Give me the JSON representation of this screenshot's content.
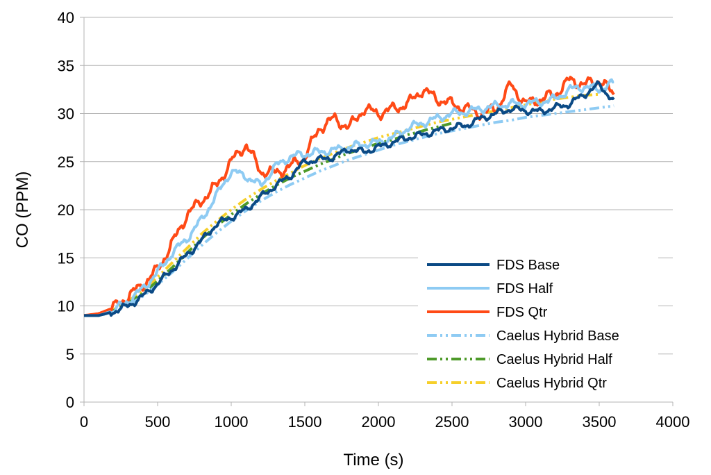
{
  "chart_data": {
    "type": "line",
    "title": "",
    "xlabel": "Time (s)",
    "ylabel": "CO (PPM)",
    "xlim": [
      0,
      4000
    ],
    "ylim": [
      0,
      40
    ],
    "xticks": [
      "0",
      "500",
      "1000",
      "1500",
      "2000",
      "2500",
      "3000",
      "3500",
      "4000"
    ],
    "yticks": [
      "0",
      "5",
      "10",
      "15",
      "20",
      "25",
      "30",
      "35",
      "40"
    ],
    "grid": "horizontal",
    "legend_position": "bottom-right",
    "series": [
      {
        "name": "FDS Base",
        "color": "#0b4a85",
        "style": "solid",
        "x": [
          0,
          100,
          200,
          300,
          400,
          500,
          600,
          700,
          800,
          900,
          1000,
          1100,
          1200,
          1300,
          1400,
          1500,
          1600,
          1700,
          1800,
          1900,
          2000,
          2100,
          2200,
          2300,
          2400,
          2500,
          2600,
          2700,
          2800,
          2900,
          3000,
          3100,
          3200,
          3300,
          3400,
          3500,
          3600
        ],
        "y": [
          9,
          9,
          9.4,
          10,
          11,
          12.3,
          13.8,
          15.3,
          16.8,
          18.5,
          19.2,
          20,
          21.3,
          22.5,
          23.5,
          25,
          25.2,
          25.5,
          26.3,
          26,
          26.5,
          27,
          27.5,
          27.8,
          28.2,
          28.5,
          28.8,
          29.5,
          30,
          30.5,
          30.3,
          30.2,
          30.6,
          31,
          32,
          33,
          31.3
        ]
      },
      {
        "name": "FDS Half",
        "color": "#8ecbf3",
        "style": "solid",
        "x": [
          0,
          100,
          200,
          300,
          400,
          500,
          600,
          700,
          800,
          900,
          1000,
          1100,
          1200,
          1300,
          1400,
          1500,
          1600,
          1700,
          1800,
          1900,
          2000,
          2100,
          2200,
          2300,
          2400,
          2500,
          2600,
          2700,
          2800,
          2900,
          3000,
          3100,
          3200,
          3300,
          3400,
          3500,
          3600
        ],
        "y": [
          9,
          9,
          9.5,
          10.5,
          11.8,
          13.5,
          15.5,
          17,
          19,
          21.5,
          24,
          23.5,
          22.5,
          24.5,
          25.5,
          25.8,
          26,
          26.2,
          26.5,
          26.8,
          27,
          27.5,
          28.5,
          29,
          29.5,
          30,
          30.2,
          30.5,
          30.8,
          31,
          31,
          31.2,
          31.5,
          32.5,
          32.8,
          32.5,
          33.2
        ]
      },
      {
        "name": "FDS Qtr",
        "color": "#ff4a16",
        "style": "solid",
        "x": [
          0,
          100,
          200,
          300,
          400,
          500,
          600,
          700,
          800,
          900,
          1000,
          1100,
          1200,
          1300,
          1400,
          1500,
          1600,
          1700,
          1800,
          1900,
          2000,
          2100,
          2200,
          2300,
          2400,
          2500,
          2600,
          2700,
          2800,
          2900,
          3000,
          3100,
          3200,
          3300,
          3400,
          3500,
          3600
        ],
        "y": [
          9,
          9.2,
          9.8,
          11,
          12.2,
          13.8,
          16.5,
          19.5,
          21,
          22.5,
          25,
          26.8,
          24,
          23.8,
          24.5,
          25.5,
          28.5,
          29.5,
          28.5,
          30.5,
          30,
          30.5,
          31,
          32.5,
          31.5,
          31,
          30.5,
          30,
          30.5,
          33,
          31,
          31.5,
          32,
          33.5,
          33,
          33.5,
          32
        ]
      },
      {
        "name": "Caelus Hybrid Base",
        "color": "#8ecbf3",
        "style": "dashdotdot",
        "x": [
          0,
          100,
          200,
          300,
          400,
          500,
          600,
          700,
          800,
          900,
          1000,
          1100,
          1200,
          1300,
          1400,
          1500,
          1600,
          1700,
          1800,
          1900,
          2000,
          2100,
          2200,
          2300,
          2400,
          2500,
          2600,
          2700,
          2800,
          2900,
          3000,
          3100,
          3200,
          3300,
          3400,
          3500,
          3600
        ],
        "y": [
          9,
          9,
          9.4,
          10.1,
          11,
          12.2,
          13.5,
          14.9,
          16.3,
          17.6,
          18.8,
          19.9,
          20.9,
          21.8,
          22.6,
          23.3,
          24,
          24.6,
          25.2,
          25.7,
          26.2,
          26.7,
          27.1,
          27.5,
          27.9,
          28.2,
          28.5,
          28.8,
          29.1,
          29.3,
          29.6,
          29.8,
          30,
          30.2,
          30.4,
          30.6,
          30.8
        ]
      },
      {
        "name": "Caelus Hybrid Half",
        "color": "#4e9a2a",
        "style": "dashdotdot",
        "x": [
          0,
          100,
          200,
          300,
          400,
          500,
          600,
          700,
          800,
          900,
          1000,
          1100,
          1200,
          1300,
          1400,
          1500,
          1600,
          1700,
          1800,
          1900,
          2000,
          2100,
          2200,
          2300,
          2400,
          2500
        ],
        "y": [
          9,
          9,
          9.5,
          10.3,
          11.3,
          12.6,
          14,
          15.5,
          17,
          18.3,
          19.5,
          20.6,
          21.6,
          22.5,
          23.3,
          24,
          24.7,
          25.3,
          25.9,
          26.4,
          26.9,
          27.3,
          27.8,
          28.2,
          28.6,
          29
        ]
      },
      {
        "name": "Caelus Hybrid Qtr",
        "color": "#f6cf2a",
        "style": "dashdotdot",
        "x": [
          0,
          100,
          200,
          300,
          400,
          500,
          600,
          700,
          800,
          900,
          1000,
          1100,
          1200,
          1300,
          1400,
          1500,
          1600,
          1700,
          1800,
          1900,
          2000,
          2100,
          2200,
          2300,
          2400,
          2500,
          2600,
          2700,
          2800,
          2900,
          3000,
          3100,
          3200,
          3300,
          3400,
          3500
        ],
        "y": [
          9,
          9,
          9.6,
          10.5,
          11.6,
          13,
          14.5,
          16,
          17.5,
          18.8,
          20,
          21.1,
          22.1,
          23,
          23.8,
          24.6,
          25.3,
          25.9,
          26.5,
          27,
          27.5,
          27.9,
          28.3,
          28.7,
          29.1,
          29.4,
          29.7,
          30,
          30.3,
          30.6,
          30.9,
          31.2,
          31.5,
          31.7,
          31.9,
          32
        ]
      }
    ]
  }
}
